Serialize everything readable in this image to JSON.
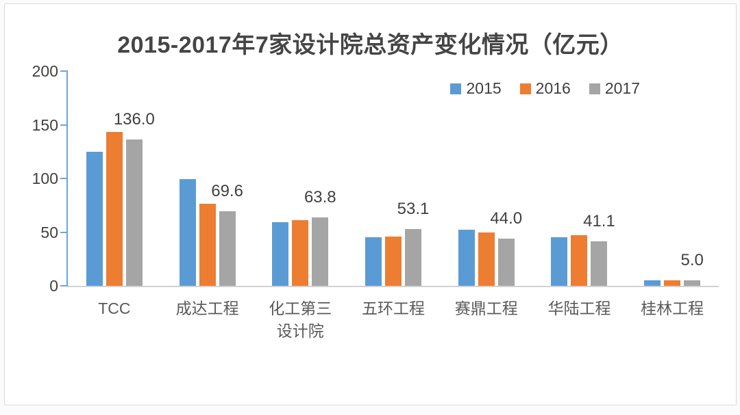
{
  "window": {
    "background": "#ffffff",
    "frame_border": "#d9d9d9"
  },
  "chart_data": {
    "type": "bar",
    "title": "2015-2017年7家设计院总资产变化情况（亿元）",
    "categories": [
      "TCC",
      "成达工程",
      "化工第三设计院",
      "五环工程",
      "赛鼎工程",
      "华陆工程",
      "桂林工程"
    ],
    "series": [
      {
        "name": "2015",
        "color": "#5B9BD5",
        "values": [
          125,
          99.5,
          59.5,
          45,
          52,
          45,
          5.2
        ]
      },
      {
        "name": "2016",
        "color": "#ED7D31",
        "values": [
          143.5,
          76.5,
          61,
          46,
          49.5,
          47,
          4.8
        ]
      },
      {
        "name": "2017",
        "color": "#A5A5A5",
        "values": [
          136.0,
          69.6,
          63.8,
          53.1,
          44.0,
          41.1,
          5.0
        ],
        "data_labels": [
          "136.0",
          "69.6",
          "63.8",
          "53.1",
          "44.0",
          "41.1",
          "5.0"
        ]
      }
    ],
    "ylim": [
      0,
      200
    ],
    "yticks": [
      0,
      50,
      100,
      150,
      200
    ],
    "legend_position": "top-right",
    "grid": false,
    "axis_line_color": "#6fa3d8",
    "baseline_color": "#d2d2d2",
    "label_color": "#404040",
    "category_label_color": "#595959"
  }
}
